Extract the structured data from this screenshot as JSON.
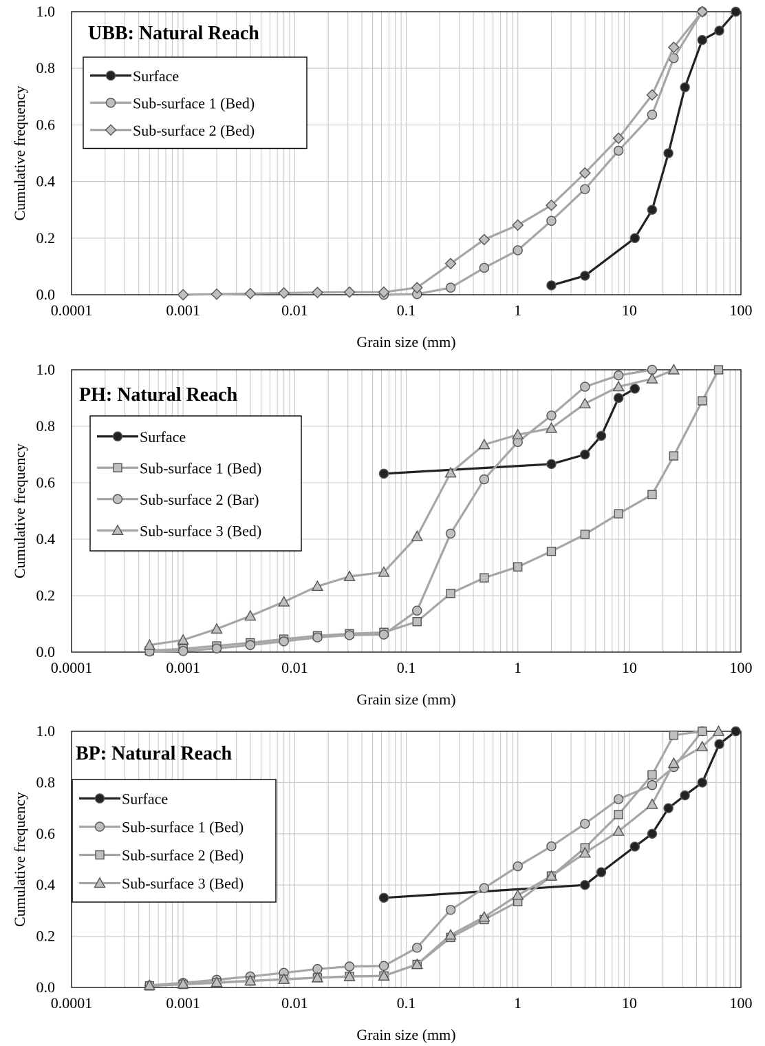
{
  "chart_data": [
    {
      "type": "line",
      "title": "UBB: Natural Reach",
      "xlabel": "Grain size (mm)",
      "ylabel": "Cumulative frequency",
      "xscale": "log",
      "xlim": [
        0.0001,
        100
      ],
      "ylim": [
        0,
        1
      ],
      "xticks": [
        "0.0001",
        "0.001",
        "0.01",
        "0.1",
        "1",
        "10",
        "100"
      ],
      "yticks": [
        "0.0",
        "0.2",
        "0.4",
        "0.6",
        "0.8",
        "1.0"
      ],
      "grid": true,
      "legend_position": "top-left",
      "series": [
        {
          "name": "Surface",
          "marker": "circle",
          "color": "#222222",
          "fill": "#222222",
          "x": [
            2,
            4,
            11.2,
            16,
            22.4,
            31.5,
            45,
            64,
            90
          ],
          "y": [
            0.033,
            0.067,
            0.2,
            0.3,
            0.5,
            0.733,
            0.9,
            0.933,
            1.0
          ]
        },
        {
          "name": "Sub-surface 1 (Bed)",
          "marker": "circle",
          "color": "#a6a6a6",
          "fill": "#bfbfbf",
          "x": [
            0.063,
            0.125,
            0.25,
            0.5,
            1,
            2,
            4,
            8,
            16,
            25,
            45
          ],
          "y": [
            0.0,
            0.002,
            0.025,
            0.095,
            0.157,
            0.261,
            0.373,
            0.509,
            0.636,
            0.836,
            1.0
          ]
        },
        {
          "name": "Sub-surface 2 (Bed)",
          "marker": "diamond",
          "color": "#a6a6a6",
          "fill": "#bfbfbf",
          "x": [
            0.001,
            0.002,
            0.004,
            0.008,
            0.016,
            0.031,
            0.063,
            0.125,
            0.25,
            0.5,
            1,
            2,
            4,
            8,
            16,
            25,
            45
          ],
          "y": [
            0.0,
            0.002,
            0.004,
            0.006,
            0.008,
            0.009,
            0.009,
            0.025,
            0.11,
            0.195,
            0.246,
            0.316,
            0.43,
            0.553,
            0.706,
            0.874,
            1.0
          ]
        }
      ]
    },
    {
      "type": "line",
      "title": "PH: Natural Reach",
      "xlabel": "Grain size (mm)",
      "ylabel": "Cumulative frequency",
      "xscale": "log",
      "xlim": [
        0.0001,
        100
      ],
      "ylim": [
        0,
        1
      ],
      "xticks": [
        "0.0001",
        "0.001",
        "0.01",
        "0.1",
        "1",
        "10",
        "100"
      ],
      "yticks": [
        "0.0",
        "0.2",
        "0.4",
        "0.6",
        "0.8",
        "1.0"
      ],
      "grid": true,
      "legend_position": "top-left",
      "series": [
        {
          "name": "Surface",
          "marker": "circle",
          "color": "#222222",
          "fill": "#222222",
          "x": [
            0.063,
            2,
            4,
            5.6,
            8,
            11.2
          ],
          "y": [
            0.632,
            0.666,
            0.7,
            0.766,
            0.9,
            0.933
          ]
        },
        {
          "name": "Sub-surface 1 (Bed)",
          "marker": "square",
          "color": "#a6a6a6",
          "fill": "#bfbfbf",
          "x": [
            0.0005,
            0.001,
            0.002,
            0.004,
            0.008,
            0.016,
            0.031,
            0.063,
            0.125,
            0.25,
            0.5,
            1,
            2,
            4,
            8,
            16,
            25,
            45,
            63
          ],
          "y": [
            0.005,
            0.012,
            0.022,
            0.033,
            0.046,
            0.058,
            0.065,
            0.07,
            0.108,
            0.208,
            0.263,
            0.302,
            0.357,
            0.417,
            0.49,
            0.558,
            0.695,
            0.89,
            1.0
          ]
        },
        {
          "name": "Sub-surface 2 (Bar)",
          "marker": "circle",
          "color": "#a6a6a6",
          "fill": "#bfbfbf",
          "x": [
            0.0005,
            0.001,
            0.002,
            0.004,
            0.008,
            0.016,
            0.031,
            0.063,
            0.125,
            0.25,
            0.5,
            1,
            2,
            4,
            8,
            16
          ],
          "y": [
            0.002,
            0.004,
            0.013,
            0.025,
            0.038,
            0.052,
            0.06,
            0.062,
            0.147,
            0.42,
            0.612,
            0.744,
            0.838,
            0.94,
            0.98,
            1.0
          ]
        },
        {
          "name": "Sub-surface 3 (Bed)",
          "marker": "triangle",
          "color": "#a6a6a6",
          "fill": "#bfbfbf",
          "x": [
            0.0005,
            0.001,
            0.002,
            0.004,
            0.008,
            0.016,
            0.031,
            0.063,
            0.125,
            0.25,
            0.5,
            1,
            2,
            4,
            8,
            16,
            25
          ],
          "y": [
            0.025,
            0.043,
            0.082,
            0.128,
            0.178,
            0.233,
            0.268,
            0.283,
            0.41,
            0.635,
            0.735,
            0.77,
            0.793,
            0.88,
            0.94,
            0.968,
            1.0
          ]
        }
      ]
    },
    {
      "type": "line",
      "title": "BP: Natural Reach",
      "xlabel": "Grain size (mm)",
      "ylabel": "Cumulative frequency",
      "xscale": "log",
      "xlim": [
        0.0001,
        100
      ],
      "ylim": [
        0,
        1
      ],
      "xticks": [
        "0.0001",
        "0.001",
        "0.01",
        "0.1",
        "1",
        "10",
        "100"
      ],
      "yticks": [
        "0.0",
        "0.2",
        "0.4",
        "0.6",
        "0.8",
        "1.0"
      ],
      "grid": true,
      "legend_position": "top-left",
      "series": [
        {
          "name": "Surface",
          "marker": "circle",
          "color": "#222222",
          "fill": "#222222",
          "x": [
            0.063,
            4,
            5.6,
            11.2,
            16,
            22.4,
            31.5,
            45,
            64,
            90
          ],
          "y": [
            0.35,
            0.4,
            0.45,
            0.55,
            0.6,
            0.7,
            0.75,
            0.8,
            0.95,
            1.0
          ]
        },
        {
          "name": "Sub-surface 1 (Bed)",
          "marker": "circle",
          "color": "#a6a6a6",
          "fill": "#bfbfbf",
          "x": [
            0.0005,
            0.001,
            0.002,
            0.004,
            0.008,
            0.016,
            0.031,
            0.063,
            0.125,
            0.25,
            0.5,
            1,
            2,
            4,
            8,
            16,
            25,
            45
          ],
          "y": [
            0.008,
            0.018,
            0.03,
            0.043,
            0.057,
            0.072,
            0.082,
            0.084,
            0.155,
            0.303,
            0.388,
            0.473,
            0.551,
            0.639,
            0.735,
            0.79,
            0.86,
            1.0
          ]
        },
        {
          "name": "Sub-surface 2 (Bed)",
          "marker": "square",
          "color": "#a6a6a6",
          "fill": "#bfbfbf",
          "x": [
            0.0005,
            0.001,
            0.002,
            0.004,
            0.008,
            0.016,
            0.031,
            0.063,
            0.125,
            0.25,
            0.5,
            1,
            2,
            4,
            8,
            16,
            25,
            45
          ],
          "y": [
            0.006,
            0.012,
            0.018,
            0.025,
            0.032,
            0.038,
            0.043,
            0.045,
            0.09,
            0.195,
            0.265,
            0.335,
            0.435,
            0.545,
            0.675,
            0.83,
            0.985,
            1.0
          ]
        },
        {
          "name": "Sub-surface 3 (Bed)",
          "marker": "triangle",
          "color": "#a6a6a6",
          "fill": "#bfbfbf",
          "x": [
            0.0005,
            0.001,
            0.002,
            0.004,
            0.008,
            0.016,
            0.031,
            0.063,
            0.125,
            0.25,
            0.5,
            1,
            2,
            4,
            8,
            16,
            25,
            45,
            63
          ],
          "y": [
            0.008,
            0.014,
            0.02,
            0.026,
            0.032,
            0.038,
            0.043,
            0.045,
            0.09,
            0.205,
            0.275,
            0.36,
            0.435,
            0.525,
            0.61,
            0.715,
            0.875,
            0.94,
            1.0
          ]
        }
      ]
    }
  ]
}
